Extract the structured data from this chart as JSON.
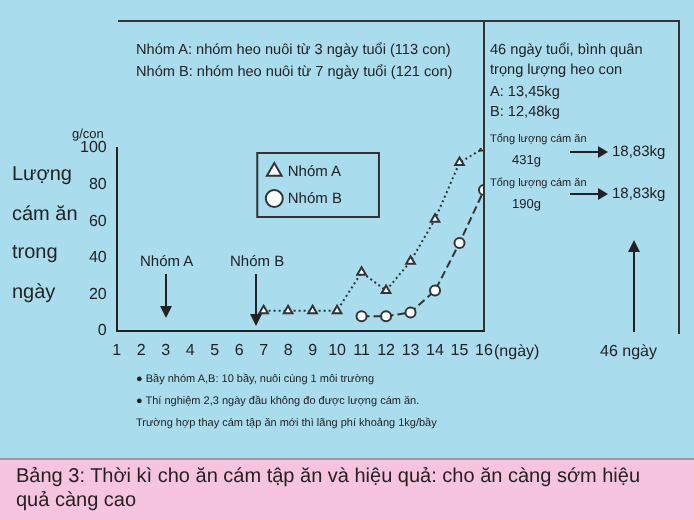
{
  "chart_data": {
    "type": "line",
    "title": "Bảng 3: Thời kì cho ăn cám tập ăn và hiệu quả: cho ăn càng sớm hiệu quả càng cao",
    "ylabel": "Lượng\ncám ăn\ntrong\nngày",
    "y2label": "g/con",
    "xlabel": "(ngày)",
    "x": [
      7,
      8,
      9,
      10,
      11,
      12,
      13,
      14,
      15,
      16
    ],
    "series": [
      {
        "name": "Nhóm A",
        "color": "#333333",
        "marker": "triangle",
        "line_style": "dotted",
        "values": [
          11,
          11,
          11,
          11,
          32,
          22,
          38,
          61,
          92,
          100
        ]
      },
      {
        "name": "Nhóm B",
        "color": "#333333",
        "marker": "circle",
        "line_style": "dashed",
        "x": [
          11,
          12,
          13,
          14,
          15,
          16
        ],
        "values": [
          8,
          8,
          10,
          22,
          48,
          77
        ]
      }
    ],
    "xlim": [
      1,
      16
    ],
    "xticks": [
      1,
      2,
      3,
      4,
      5,
      6,
      7,
      8,
      9,
      10,
      11,
      12,
      13,
      14,
      15,
      16
    ],
    "ylim": [
      0,
      100
    ],
    "yticks": [
      0,
      20,
      40,
      60,
      80,
      100
    ],
    "grid": false,
    "legend": "top",
    "ref_lines": [
      {
        "axis": "x",
        "value": 16,
        "color": "#333333"
      }
    ],
    "annotations": [
      "Nhóm A",
      "Nhóm B",
      "Nhóm A: nhóm heo nuôi từ 3 ngày tuổi (113 con)",
      "Nhóm B: nhóm heo nuôi từ 7 ngày tuổi (121 con)",
      "46 ngày tuổi, bình quân trọng lượng heo con",
      "A: 13,45kg",
      "B: 12,48kg",
      "Tổng lượng cám ăn",
      "431g",
      "18,83kg",
      "Tổng lượng cám ăn",
      "190g",
      "18,83kg",
      "46 ngày",
      "● Bầy nhóm A,B: 10 bầy, nuôi cùng 1 môi trường",
      "● Thí nghiệm 2,3 ngày đầu không đo được lượng cám ăn.",
      "Trường hợp thay cám tập ăn mới thì lãng phí khoảng 1kg/bầy"
    ]
  }
}
